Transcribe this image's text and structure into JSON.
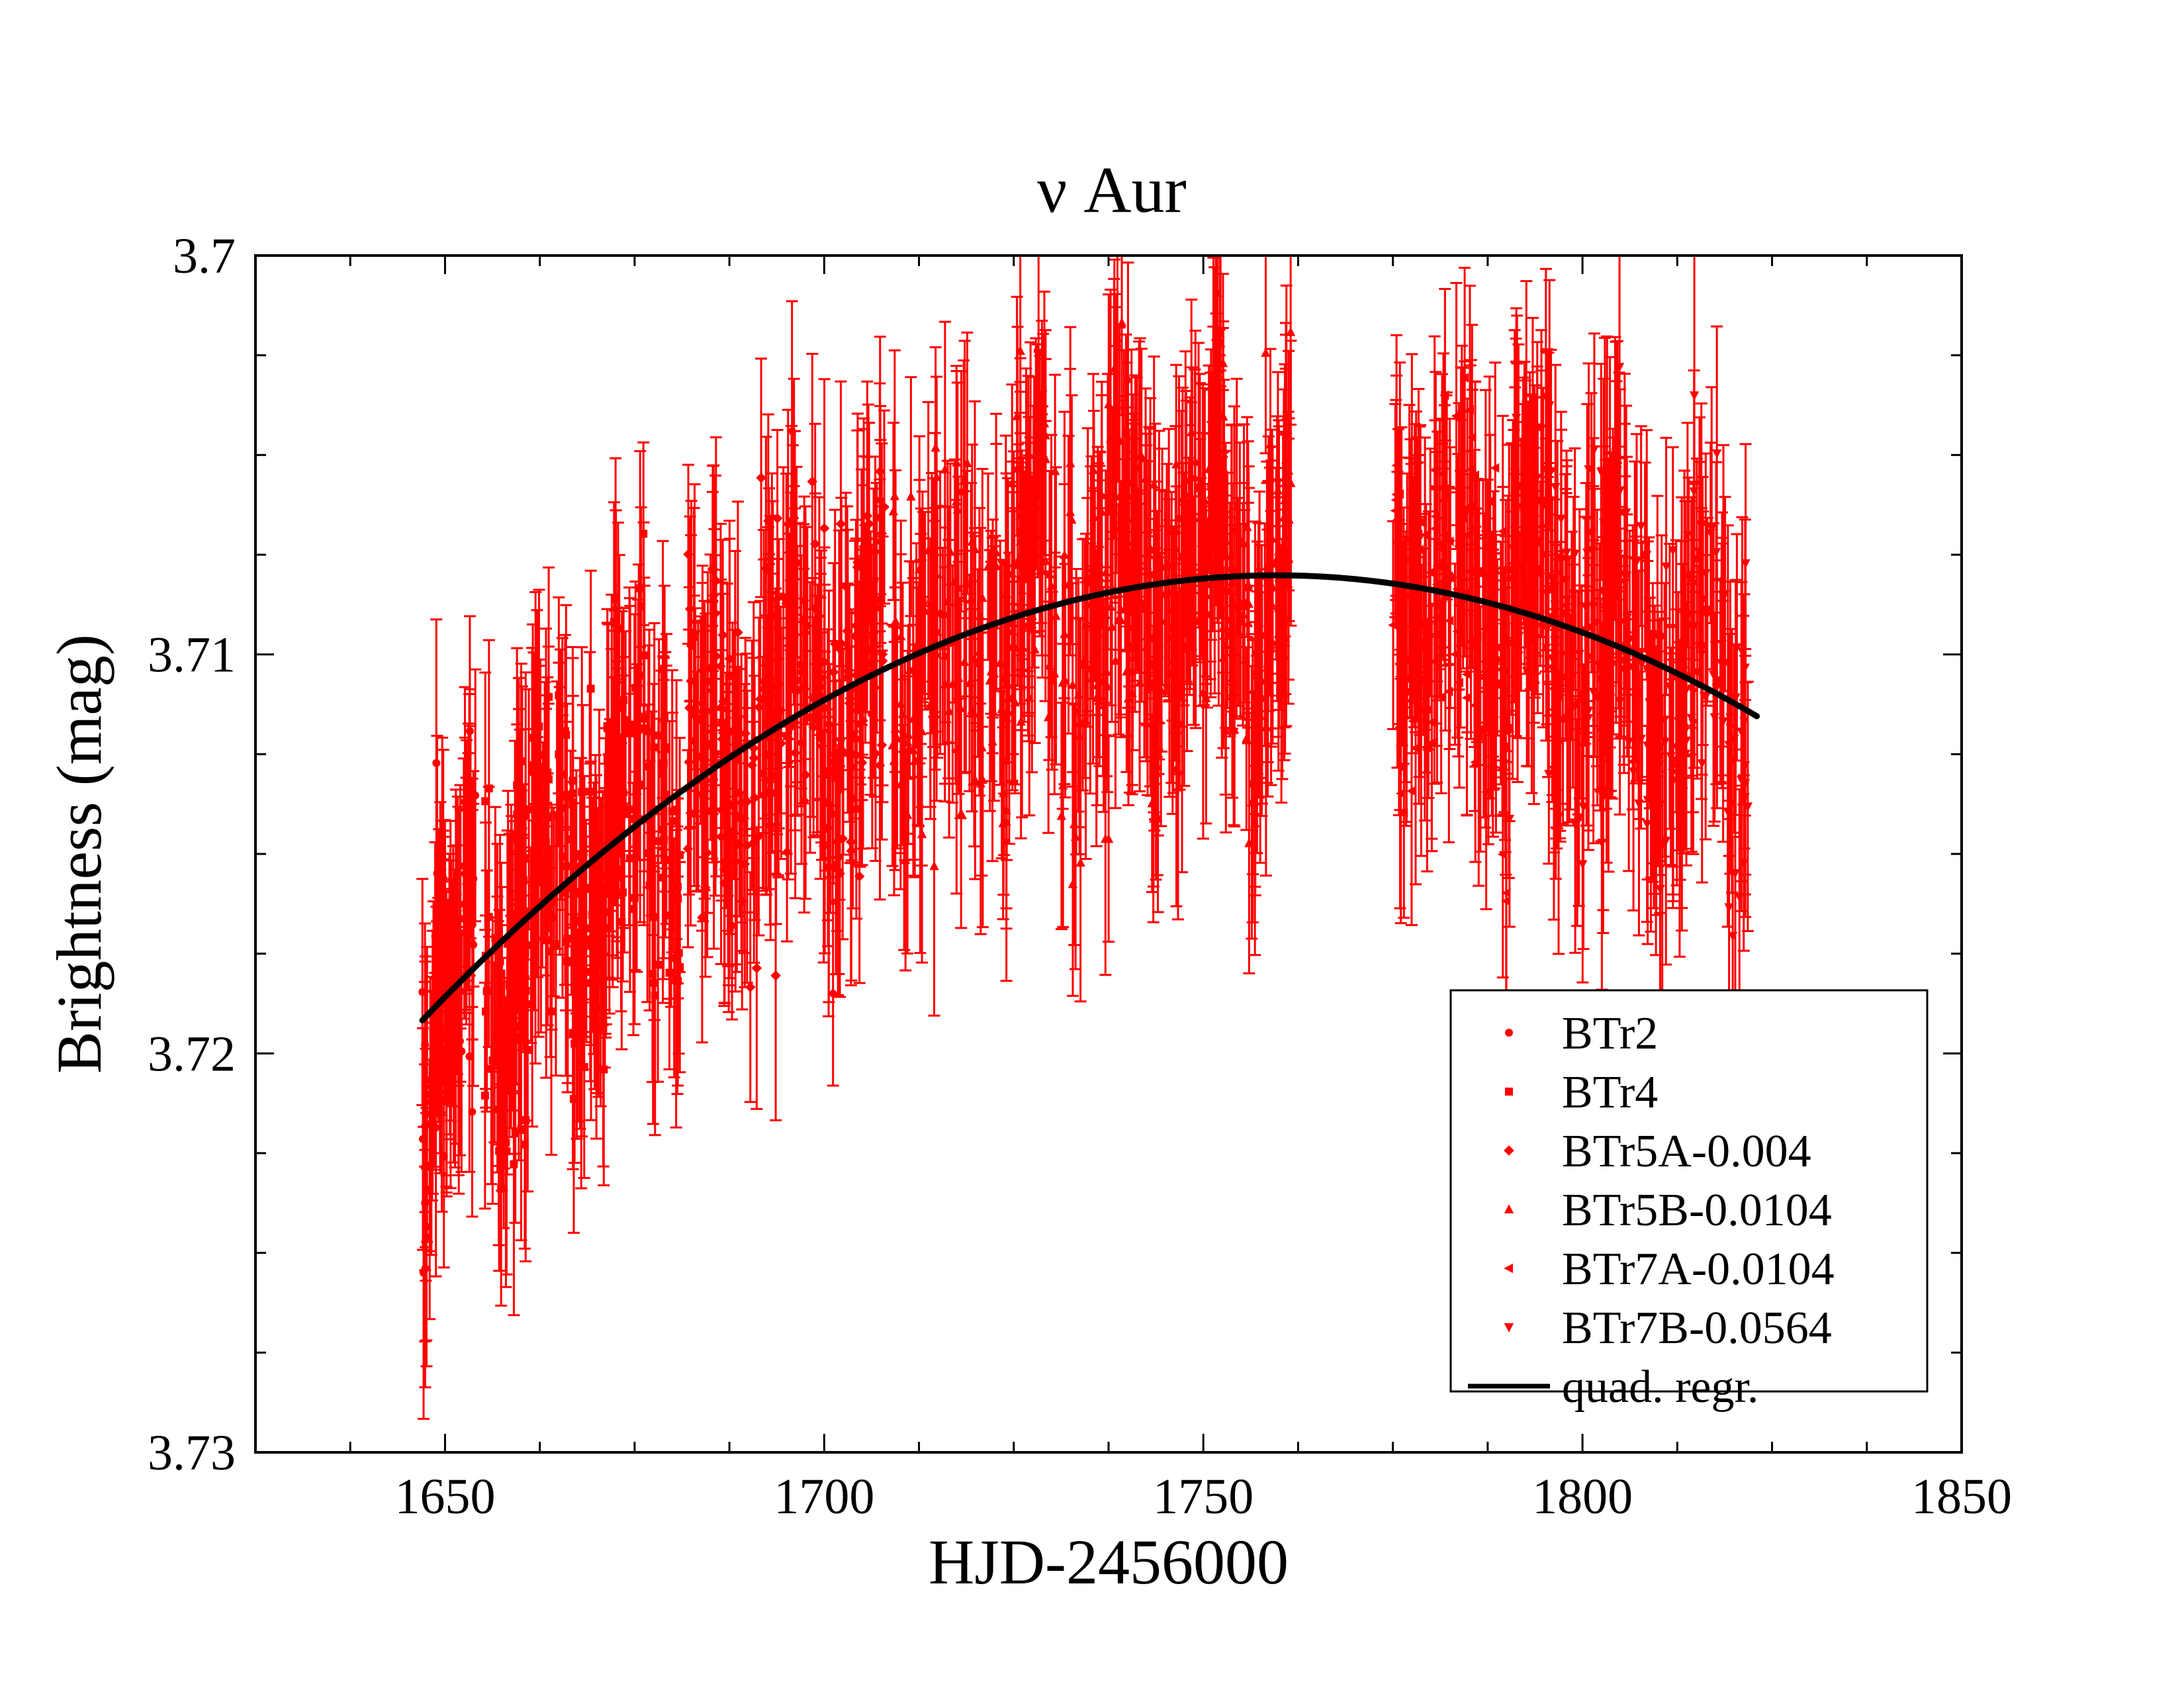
{
  "chart_data": {
    "type": "scatter",
    "title": "ν Aur",
    "xlabel": "HJD-2456000",
    "ylabel": "Brightness (mag)",
    "xlim": [
      1625,
      1850
    ],
    "ylim": [
      3.73,
      3.7
    ],
    "y_inverted": true,
    "grid": false,
    "legend_position": "bottom-right",
    "x_major_ticks": [
      1650,
      1700,
      1750,
      1800,
      1850
    ],
    "y_major_ticks": [
      3.7,
      3.71,
      3.72,
      3.73
    ],
    "x_tick_labels": [
      "1650",
      "1700",
      "1750",
      "1800",
      "1850"
    ],
    "y_tick_labels": [
      "3.7",
      "3.71",
      "3.72",
      "3.73"
    ],
    "point_color": "#ff0000",
    "fit_color": "#000000",
    "series": [
      {
        "name": "BTr2",
        "marker": "circle",
        "x_range": [
          1647,
          1654
        ],
        "y_range": [
          3.7115,
          3.7255
        ]
      },
      {
        "name": "BTr4",
        "marker": "square",
        "x_range": [
          1655,
          1681
        ],
        "y_range": [
          3.706,
          3.7235
        ]
      },
      {
        "name": "BTr5A-0.004",
        "marker": "diamond",
        "x_range": [
          1682,
          1708
        ],
        "y_range": [
          3.702,
          3.7185
        ]
      },
      {
        "name": "BTr5B-0.0104",
        "marker": "triangle-up",
        "x_range": [
          1709,
          1762
        ],
        "y_range": [
          3.7,
          3.7165
        ]
      },
      {
        "name": "BTr7A-0.0104",
        "marker": "triangle-left",
        "x_range": [
          1775,
          1790
        ],
        "y_range": [
          3.7025,
          3.7175
        ]
      },
      {
        "name": "BTr7B-0.0564",
        "marker": "triangle-down",
        "x_range": [
          1790,
          1822
        ],
        "y_range": [
          3.7,
          3.72
        ]
      }
    ],
    "fit": {
      "name": "quad. regr.",
      "type": "quadratic",
      "x_range": [
        1647,
        1823
      ],
      "points": [
        [
          1647,
          3.7191
        ],
        [
          1680,
          3.7137
        ],
        [
          1710,
          3.7102
        ],
        [
          1740,
          3.7084
        ],
        [
          1762,
          3.7079
        ],
        [
          1790,
          3.7088
        ],
        [
          1823,
          3.7116
        ]
      ]
    }
  }
}
